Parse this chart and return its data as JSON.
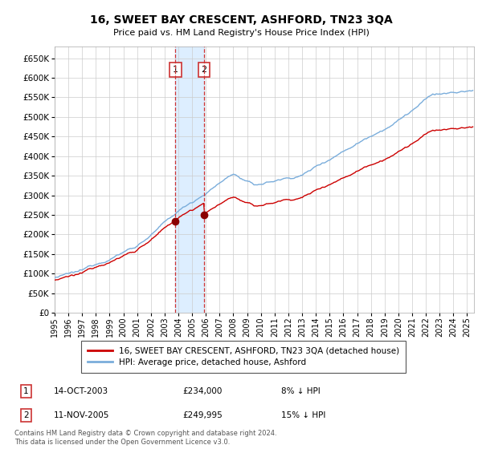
{
  "title": "16, SWEET BAY CRESCENT, ASHFORD, TN23 3QA",
  "subtitle": "Price paid vs. HM Land Registry's House Price Index (HPI)",
  "ylabel_ticks": [
    "£0",
    "£50K",
    "£100K",
    "£150K",
    "£200K",
    "£250K",
    "£300K",
    "£350K",
    "£400K",
    "£450K",
    "£500K",
    "£550K",
    "£600K",
    "£650K"
  ],
  "ylim": [
    0,
    680000
  ],
  "xlim_start": 1995.0,
  "xlim_end": 2025.5,
  "purchase1_date": 2003.79,
  "purchase1_price": 234000,
  "purchase1_label": "1",
  "purchase2_date": 2005.87,
  "purchase2_price": 249995,
  "purchase2_label": "2",
  "hpi_line_color": "#7aaddb",
  "price_line_color": "#cc0000",
  "background_color": "#ffffff",
  "grid_color": "#cccccc",
  "legend_label_price": "16, SWEET BAY CRESCENT, ASHFORD, TN23 3QA (detached house)",
  "legend_label_hpi": "HPI: Average price, detached house, Ashford",
  "table_entries": [
    {
      "num": "1",
      "date": "14-OCT-2003",
      "price": "£234,000",
      "hpi": "8% ↓ HPI"
    },
    {
      "num": "2",
      "date": "11-NOV-2005",
      "price": "£249,995",
      "hpi": "15% ↓ HPI"
    }
  ],
  "footer": "Contains HM Land Registry data © Crown copyright and database right 2024.\nThis data is licensed under the Open Government Licence v3.0.",
  "shade_color": "#ddeeff",
  "marker_color": "#8b0000"
}
